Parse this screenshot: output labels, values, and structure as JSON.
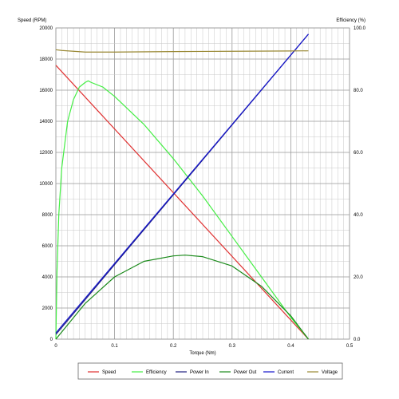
{
  "chart_data": {
    "type": "line",
    "title": "",
    "x_axis": {
      "label": "Torque (Nm)",
      "min": 0,
      "max": 0.5,
      "ticks": [
        "0",
        "0.1",
        "0.2",
        "0.3",
        "0.4",
        "0.5"
      ]
    },
    "y_left": {
      "label": "Speed (RPM)",
      "min": 0,
      "max": 20000,
      "ticks": [
        "0",
        "2000",
        "4000",
        "6000",
        "8000",
        "10000",
        "12000",
        "14000",
        "16000",
        "18000",
        "20000"
      ]
    },
    "y_right": {
      "label": "Efficiency (%)",
      "min": 0,
      "max": 100,
      "ticks": [
        "0.0",
        "20.0",
        "40.0",
        "60.0",
        "80.0",
        "100.0"
      ]
    },
    "grid": true,
    "legend_position": "bottom",
    "series": [
      {
        "name": "Speed",
        "color": "#e03030",
        "x": [
          0,
          0.43
        ],
        "y": [
          17600,
          0
        ]
      },
      {
        "name": "Efficiency",
        "color": "#44ee44",
        "x": [
          0,
          0.002,
          0.005,
          0.01,
          0.02,
          0.03,
          0.04,
          0.05,
          0.055,
          0.06,
          0.08,
          0.1,
          0.15,
          0.2,
          0.25,
          0.3,
          0.35,
          0.4,
          0.43
        ],
        "y": [
          0,
          22,
          40,
          55,
          70,
          77,
          81,
          82.5,
          83,
          82.5,
          81,
          78,
          69,
          58,
          46,
          33,
          20,
          7,
          0
        ]
      },
      {
        "name": "Power In",
        "color": "#202080",
        "x": [
          0,
          0.43
        ],
        "y": [
          300,
          19600
        ]
      },
      {
        "name": "Power Out",
        "color": "#1a8a1a",
        "x": [
          0,
          0.05,
          0.1,
          0.15,
          0.2,
          0.22,
          0.25,
          0.3,
          0.35,
          0.4,
          0.43
        ],
        "y": [
          0,
          2300,
          4000,
          5000,
          5350,
          5400,
          5300,
          4700,
          3400,
          1500,
          0
        ]
      },
      {
        "name": "Current",
        "color": "#1515cc",
        "x": [
          0,
          0.43
        ],
        "y": [
          400,
          19600
        ]
      },
      {
        "name": "Voltage",
        "color": "#998833",
        "x": [
          0,
          0.01,
          0.05,
          0.1,
          0.2,
          0.3,
          0.4,
          0.43
        ],
        "y": [
          18600,
          18550,
          18450,
          18450,
          18480,
          18500,
          18520,
          18530
        ]
      }
    ]
  }
}
